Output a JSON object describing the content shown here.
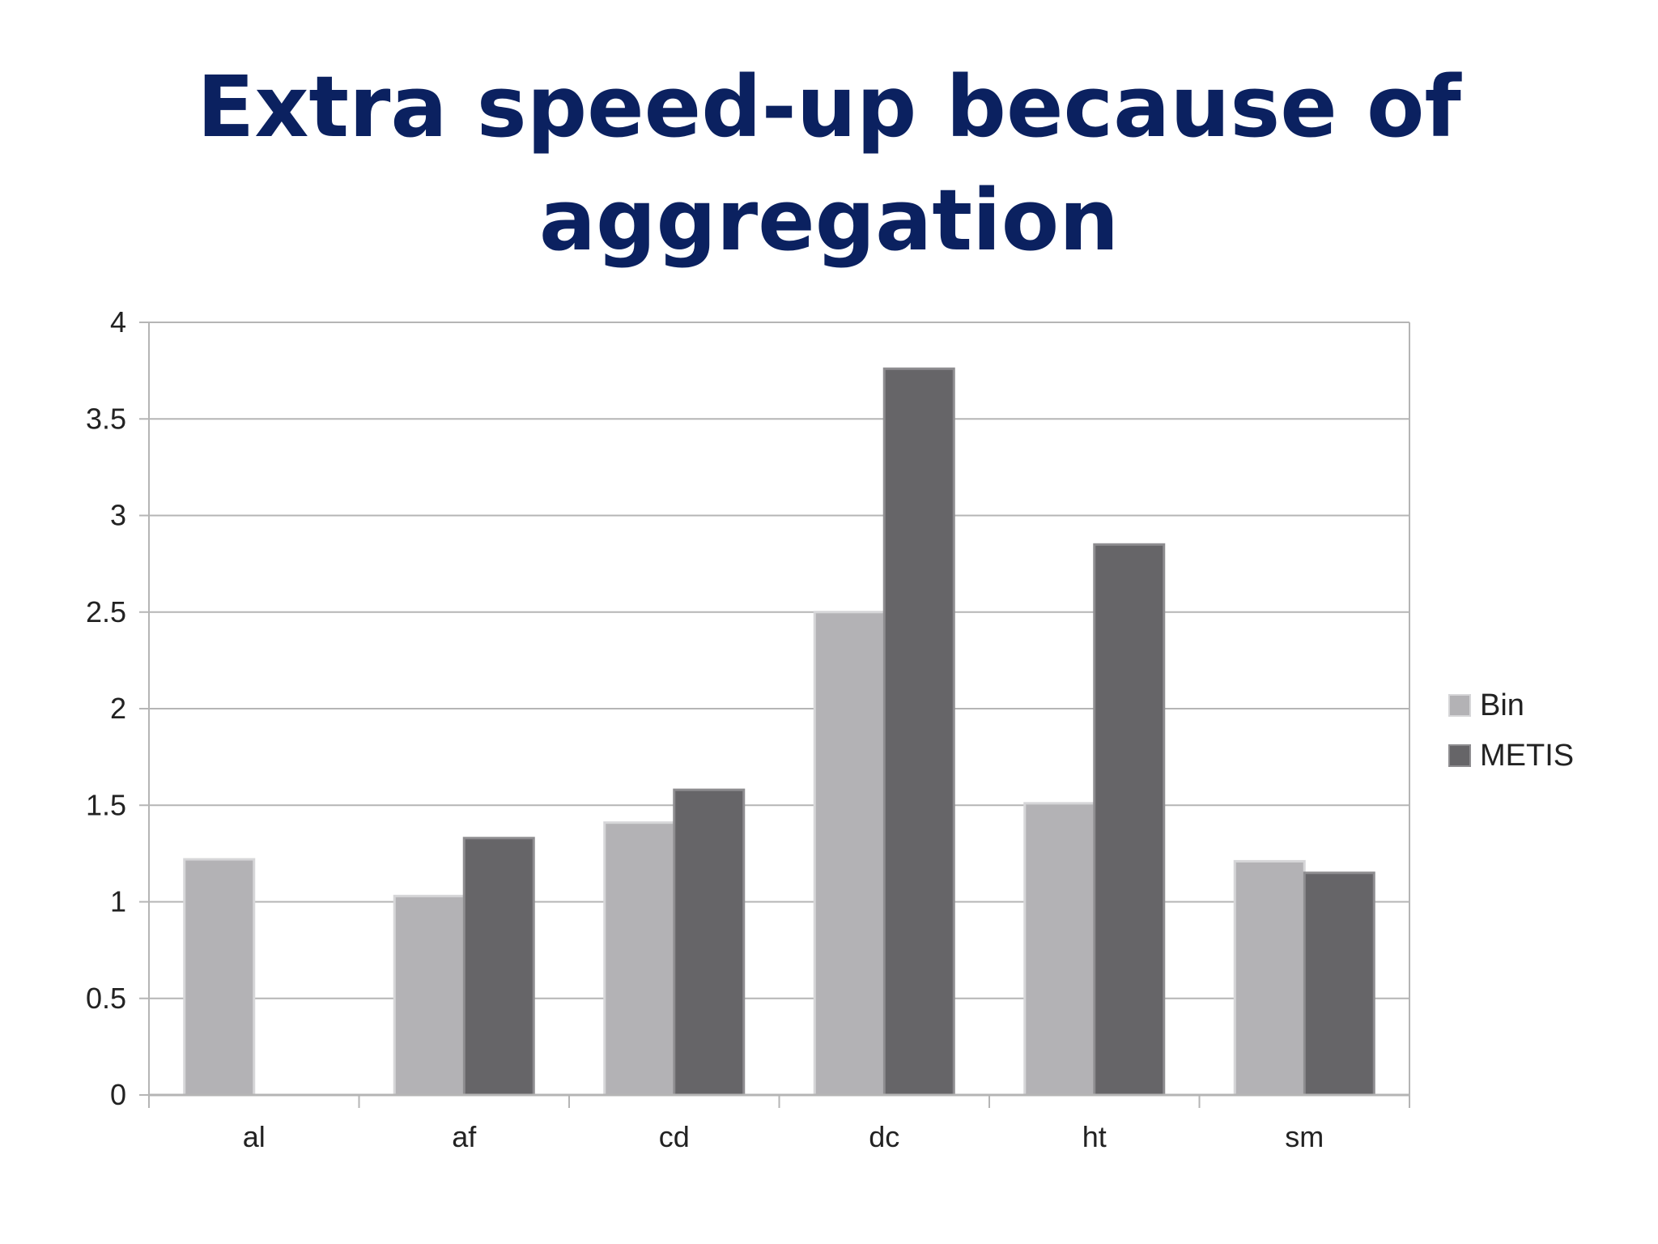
{
  "title_lines": [
    "Extra speed-up because of",
    "aggregation"
  ],
  "chart_data": {
    "type": "bar",
    "title": "Extra speed-up because of aggregation",
    "categories": [
      "al",
      "af",
      "cd",
      "dc",
      "ht",
      "sm"
    ],
    "series": [
      {
        "name": "Bin",
        "color": "#b3b2b5",
        "values": [
          1.22,
          1.03,
          1.41,
          2.5,
          1.51,
          1.21
        ]
      },
      {
        "name": "METIS",
        "color": "#666568",
        "values": [
          null,
          1.33,
          1.58,
          3.76,
          2.85,
          1.15
        ]
      }
    ],
    "ylim": [
      0,
      4
    ],
    "yticks": [
      "0",
      "0.5",
      "1",
      "1.5",
      "2",
      "2.5",
      "3",
      "3.5",
      "4"
    ],
    "grid": true,
    "legend": "right"
  }
}
